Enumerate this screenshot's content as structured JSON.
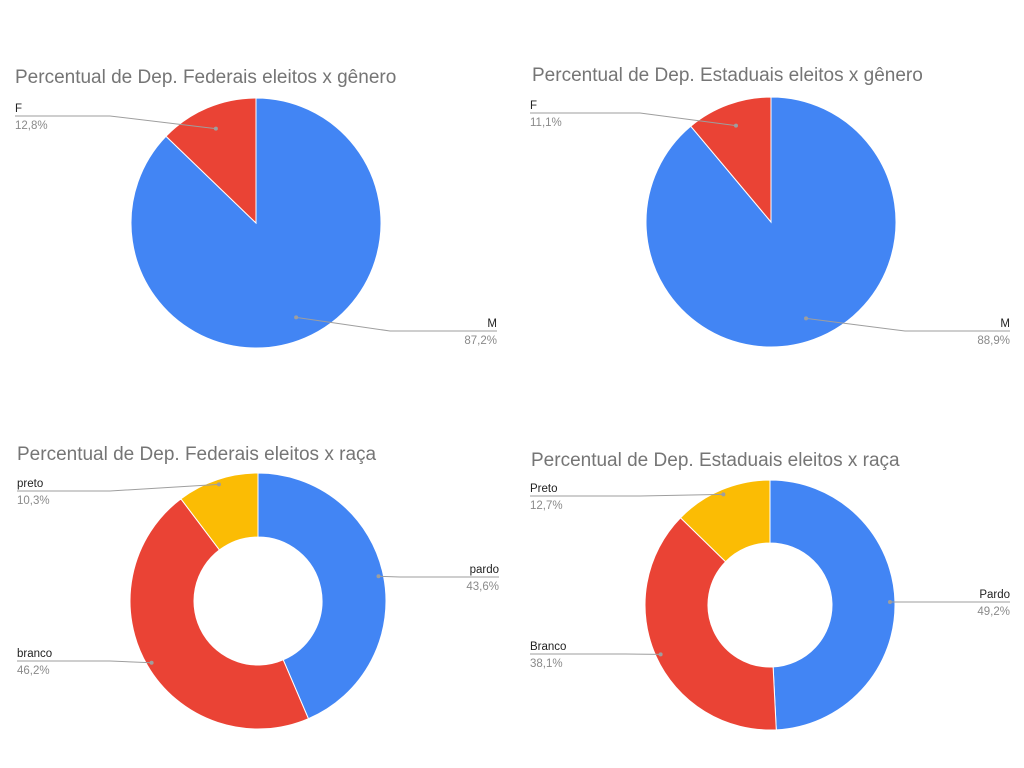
{
  "chart_data": [
    {
      "type": "pie",
      "title": "Percentual de Dep. Federais eleitos x gênero",
      "slices": [
        {
          "label": "M",
          "value": 87.2,
          "display": "87,2%",
          "color": "#4285f4"
        },
        {
          "label": "F",
          "value": 12.8,
          "display": "12,8%",
          "color": "#ea4335"
        }
      ]
    },
    {
      "type": "pie",
      "title": "Percentual de Dep. Estaduais eleitos x gênero",
      "slices": [
        {
          "label": "M",
          "value": 88.9,
          "display": "88,9%",
          "color": "#4285f4"
        },
        {
          "label": "F",
          "value": 11.1,
          "display": "11,1%",
          "color": "#ea4335"
        }
      ]
    },
    {
      "type": "pie",
      "donut": true,
      "title": "Percentual de Dep. Federais eleitos x raça",
      "slices": [
        {
          "label": "pardo",
          "value": 43.6,
          "display": "43,6%",
          "color": "#4285f4"
        },
        {
          "label": "branco",
          "value": 46.2,
          "display": "46,2%",
          "color": "#ea4335"
        },
        {
          "label": "preto",
          "value": 10.3,
          "display": "10,3%",
          "color": "#fbbc04"
        }
      ]
    },
    {
      "type": "pie",
      "donut": true,
      "title": "Percentual de Dep. Estaduais eleitos x raça",
      "slices": [
        {
          "label": "Pardo",
          "value": 49.2,
          "display": "49,2%",
          "color": "#4285f4"
        },
        {
          "label": "Branco",
          "value": 38.1,
          "display": "38,1%",
          "color": "#ea4335"
        },
        {
          "label": "Preto",
          "value": 12.7,
          "display": "12,7%",
          "color": "#fbbc04"
        }
      ]
    }
  ]
}
